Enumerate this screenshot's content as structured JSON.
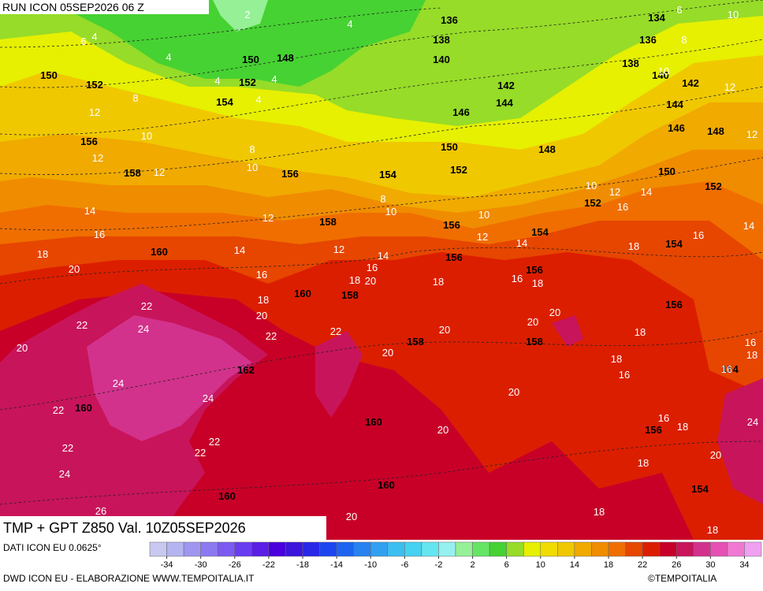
{
  "header": {
    "run": "RUN ICON 05SEP2026 06 Z"
  },
  "map": {
    "title": "TMP + GPT Z850 Val. 10Z05SEP2026",
    "geopotential_labels": [
      136,
      138,
      140,
      134,
      136,
      138,
      140,
      142,
      142,
      144,
      146,
      144,
      146,
      148,
      148,
      150,
      152,
      154,
      156,
      158,
      150,
      152,
      152,
      150,
      148,
      152,
      154,
      150,
      152,
      156,
      158,
      156,
      154,
      156,
      154,
      160,
      160,
      158,
      156,
      156,
      158,
      158,
      162,
      154,
      160,
      160,
      156,
      154,
      160,
      160
    ],
    "temperature_labels": [
      2,
      4,
      6,
      4,
      4,
      4,
      4,
      4,
      6,
      10,
      8,
      10,
      12,
      8,
      12,
      10,
      12,
      12,
      12,
      10,
      8,
      14,
      16,
      18,
      20,
      12,
      14,
      16,
      18,
      20,
      22,
      22,
      24,
      20,
      22,
      22,
      24,
      24,
      22,
      22,
      24,
      22,
      22,
      26,
      20,
      20,
      20,
      18,
      20,
      18,
      16,
      14,
      12,
      12,
      10,
      10,
      8,
      14,
      16,
      18,
      20,
      20,
      18,
      18,
      16,
      16,
      18,
      14,
      16,
      14,
      12,
      10,
      20,
      20,
      16,
      18,
      18,
      20,
      24,
      18,
      18,
      16,
      18,
      16
    ]
  },
  "colorbar": {
    "range": [
      -36,
      36
    ],
    "colors": [
      "#c8c8f0",
      "#b4b4f0",
      "#a096f0",
      "#8c78f0",
      "#7a5af0",
      "#6a3cf0",
      "#5a1ee6",
      "#4a00dc",
      "#3c14dc",
      "#2828e6",
      "#1e46f0",
      "#1e64f0",
      "#2882f0",
      "#32a0f0",
      "#3cbef0",
      "#46d2f0",
      "#64e6f0",
      "#96f0f0",
      "#96f096",
      "#64e664",
      "#46d232",
      "#96dc28",
      "#e6f000",
      "#f0dc00",
      "#f0c800",
      "#f0aa00",
      "#f08c00",
      "#f06e00",
      "#e64600",
      "#dc1e00",
      "#c80028",
      "#c8145a",
      "#d2328c",
      "#e650b4",
      "#f078d2",
      "#f0a0f0"
    ],
    "ticks": [
      -34,
      -30,
      -26,
      -22,
      -18,
      -14,
      -10,
      -6,
      -2,
      2,
      6,
      10,
      14,
      18,
      22,
      26,
      30,
      34
    ]
  },
  "footer": {
    "source": "DATI ICON EU 0.0625°",
    "credit": "DWD ICON EU - ELABORAZIONE WWW.TEMPOITALIA.IT",
    "copyright": "©TEMPOITALIA"
  }
}
